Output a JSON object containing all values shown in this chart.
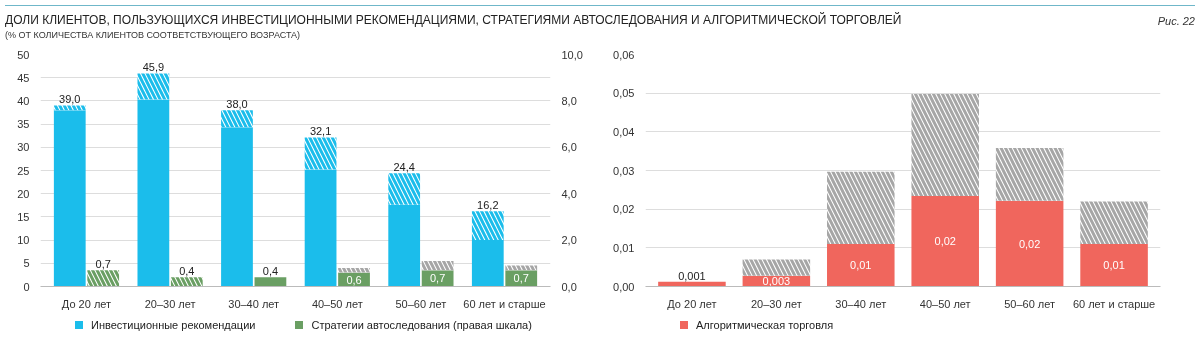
{
  "chart_data": [
    {
      "type": "bar",
      "title": "ДОЛИ КЛИЕНТОВ, ПОЛЬЗУЮЩИХСЯ ИНВЕСТИЦИОННЫМИ РЕКОМЕНДАЦИЯМИ, СТРАТЕГИЯМИ АВТОСЛЕДОВАНИЯ И АЛГОРИТМИЧЕСКОЙ ТОРГОВЛЕЙ",
      "subtitle": "(% ОТ КОЛИЧЕСТВА КЛИЕНТОВ СООТВЕТСТВУЮЩЕГО ВОЗРАСТА)",
      "categories": [
        "До 20 лет",
        "20–30 лет",
        "30–40 лет",
        "40–50 лет",
        "50–60 лет",
        "60 лет и старше"
      ],
      "stacked": true,
      "series": [
        {
          "name": "Инвестиционные рекомендации",
          "color": "#1bbdeb",
          "values": [
            38.0,
            40.3,
            34.3,
            25.2,
            17.6,
            10.0
          ]
        },
        {
          "color": "#1bbdeb",
          "values": [
            1.0,
            5.6,
            3.7,
            6.9,
            6.8,
            6.2
          ]
        },
        {
          "name": "Стратегии автоследования (правая шкала)",
          "color": "#6a9f63",
          "axis": "y2",
          "values": [
            null,
            null,
            0.4,
            0.6,
            0.7,
            0.7
          ],
          "value_labels": [
            null,
            null,
            "0,4",
            "0,6",
            "0,7",
            "0,7"
          ]
        },
        {
          "color": "#6a9f63",
          "axis": "y2",
          "values": [
            0.7,
            0.4,
            null,
            null,
            null,
            null
          ],
          "value_labels": [
            "0,7",
            "0,4",
            null,
            null,
            null,
            null
          ]
        },
        {
          "color": "#a6a6a6",
          "axis": "y2",
          "values": [
            null,
            null,
            null,
            0.2,
            0.4,
            0.2
          ]
        }
      ],
      "totals": [
        "39,0",
        "45,9",
        "38,0",
        "32,1",
        "24,4",
        "16,2"
      ],
      "ylim": [
        0,
        50
      ],
      "yticks": [
        0,
        5,
        10,
        15,
        20,
        25,
        30,
        35,
        40,
        45,
        50
      ],
      "y2lim": [
        0,
        10
      ],
      "y2ticks": [
        {
          "value": 0,
          "label": "0,0"
        },
        {
          "value": 2,
          "label": "2,0"
        },
        {
          "value": 4,
          "label": "4,0"
        },
        {
          "value": 6,
          "label": "6,0"
        },
        {
          "value": 8,
          "label": "8,0"
        },
        {
          "value": 10,
          "label": "10,0"
        }
      ],
      "grid": "y",
      "legend": "bottom"
    },
    {
      "type": "bar",
      "categories": [
        "До 20 лет",
        "20–30 лет",
        "30–40 лет",
        "40–50 лет",
        "50–60 лет",
        "60 лет и старше"
      ],
      "stacked": true,
      "series": [
        {
          "name": "Алгоритмическая торговля",
          "color": "#f0665d",
          "values": [
            0.0012,
            0.0028,
            0.011,
            0.0234,
            0.0222,
            0.011
          ],
          "value_labels": [
            "0,001",
            "0,003",
            "0,01",
            "0,02",
            "0,02",
            "0,01"
          ]
        },
        {
          "color": "#a6a6a6",
          "values": [
            null,
            0.0042,
            0.0187,
            0.0264,
            0.0136,
            0.011
          ]
        }
      ],
      "annotations": [
        "Рис. 22"
      ],
      "ylim": [
        0,
        0.06
      ],
      "yticks": [
        {
          "value": 0,
          "label": "0,00"
        },
        {
          "value": 0.01,
          "label": "0,01"
        },
        {
          "value": 0.02,
          "label": "0,02"
        },
        {
          "value": 0.03,
          "label": "0,03"
        },
        {
          "value": 0.04,
          "label": "0,04"
        },
        {
          "value": 0.05,
          "label": "0,05"
        },
        {
          "value": 0.06,
          "label": "0,06"
        }
      ],
      "grid": "y",
      "legend": "bottom"
    }
  ]
}
